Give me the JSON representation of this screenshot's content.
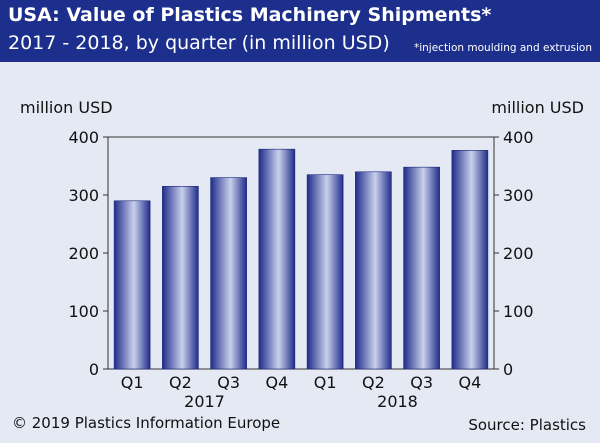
{
  "header": {
    "title": "USA: Value of Plastics Machinery Shipments*",
    "subtitle": "2017 - 2018, by quarter (in million USD)",
    "note": "*injection moulding and extrusion"
  },
  "footer": {
    "copyright": "© 2019 Plastics Information Europe",
    "source": "Source: Plastics"
  },
  "colors": {
    "header_bg": "#1d2f8c",
    "background": "#e4e9f3",
    "bar_dark": "#1f2d8a",
    "bar_light": "#c9d0ec"
  },
  "chart_data": {
    "type": "bar",
    "categories": [
      "Q1",
      "Q2",
      "Q3",
      "Q4",
      "Q1",
      "Q2",
      "Q3",
      "Q4"
    ],
    "groups": [
      {
        "label": "2017",
        "from": 0,
        "to": 3
      },
      {
        "label": "2018",
        "from": 4,
        "to": 7
      }
    ],
    "values": [
      290,
      315,
      330,
      379,
      335,
      340,
      348,
      377
    ],
    "ylabel_left": "million USD",
    "ylabel_right": "million USD",
    "ylim": [
      0,
      400
    ],
    "yticks": [
      0,
      100,
      200,
      300,
      400
    ],
    "grid": false,
    "legend": "none"
  }
}
